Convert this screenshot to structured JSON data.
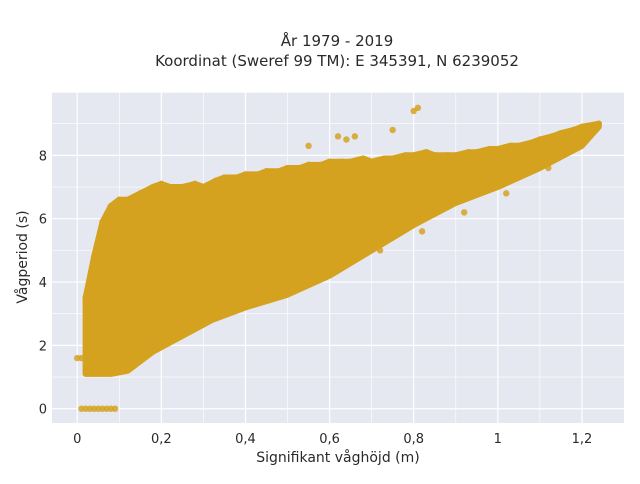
{
  "chart_data": {
    "type": "scatter",
    "title_lines": [
      "År 1979 - 2019",
      "Koordinat (Sweref 99 TM): E 345391, N 6239052"
    ],
    "xlabel": "Signifikant våghöjd (m)",
    "ylabel": "Vågperiod (s)",
    "xlim": [
      -0.06,
      1.3
    ],
    "ylim": [
      -0.45,
      10.0
    ],
    "x_ticks": [
      0,
      0.2,
      0.4,
      0.6,
      0.8,
      1,
      1.2
    ],
    "x_tick_labels": [
      "0",
      "0,2",
      "0,4",
      "0,6",
      "0,8",
      "1",
      "1,2"
    ],
    "y_ticks": [
      0,
      2,
      4,
      6,
      8
    ],
    "y_tick_labels": [
      "0",
      "2",
      "4",
      "6",
      "8"
    ],
    "grid": true,
    "marker_color": "#d4a21e",
    "plot_bg": "#e5e8f1",
    "series": [
      {
        "description_points": "dense wave-height vs wave-period cloud",
        "x": [
          0.02,
          0.04,
          0.06,
          0.08,
          0.1,
          0.12,
          0.15,
          0.18,
          0.2,
          0.22,
          0.25,
          0.28,
          0.3,
          0.33,
          0.35,
          0.38,
          0.4,
          0.43,
          0.45,
          0.48,
          0.5,
          0.53,
          0.55,
          0.58,
          0.6,
          0.63,
          0.65,
          0.68,
          0.7,
          0.73,
          0.75,
          0.78,
          0.8,
          0.83,
          0.85,
          0.88,
          0.9,
          0.93,
          0.95,
          0.98,
          1.0,
          1.03,
          1.05,
          1.08,
          1.1,
          1.13,
          1.15,
          1.18,
          1.2,
          1.24,
          0.02,
          0.05,
          0.09,
          0.14,
          0.19,
          0.26,
          0.32,
          0.41,
          0.52,
          0.62,
          0.72,
          0.82,
          0.92,
          1.02,
          1.12,
          0.03,
          0.07,
          0.11,
          0.17,
          0.24,
          0.31,
          0.39,
          0.47,
          0.56,
          0.66,
          0.76,
          0.86,
          0.96,
          1.06,
          1.16,
          0.8,
          0.81,
          0.75,
          0.62,
          0.64,
          0.66,
          0.55,
          0.01,
          0.0,
          0.04
        ],
        "y": [
          3.5,
          4.8,
          5.9,
          6.4,
          6.6,
          6.6,
          6.8,
          7.0,
          7.1,
          7.0,
          7.0,
          7.1,
          7.0,
          7.2,
          7.3,
          7.3,
          7.4,
          7.4,
          7.5,
          7.5,
          7.6,
          7.6,
          7.7,
          7.7,
          7.8,
          7.8,
          7.8,
          7.9,
          7.8,
          7.9,
          7.9,
          8.0,
          8.0,
          8.1,
          8.0,
          8.0,
          8.0,
          8.1,
          8.1,
          8.2,
          8.2,
          8.3,
          8.3,
          8.4,
          8.5,
          8.6,
          8.7,
          8.8,
          8.9,
          9.0,
          1.2,
          1.3,
          1.5,
          1.9,
          2.2,
          2.6,
          3.0,
          3.4,
          4.0,
          4.5,
          5.0,
          5.6,
          6.2,
          6.8,
          7.6,
          2.0,
          2.8,
          3.5,
          4.2,
          4.7,
          5.1,
          5.5,
          5.9,
          6.3,
          6.7,
          7.0,
          7.2,
          7.4,
          7.7,
          8.1,
          9.4,
          9.5,
          8.8,
          8.6,
          8.5,
          8.6,
          8.3,
          1.6,
          1.6,
          3.2
        ]
      }
    ],
    "zero_points_x": [
      0.01,
      0.02,
      0.03,
      0.04,
      0.05,
      0.06,
      0.07,
      0.08,
      0.09
    ]
  }
}
